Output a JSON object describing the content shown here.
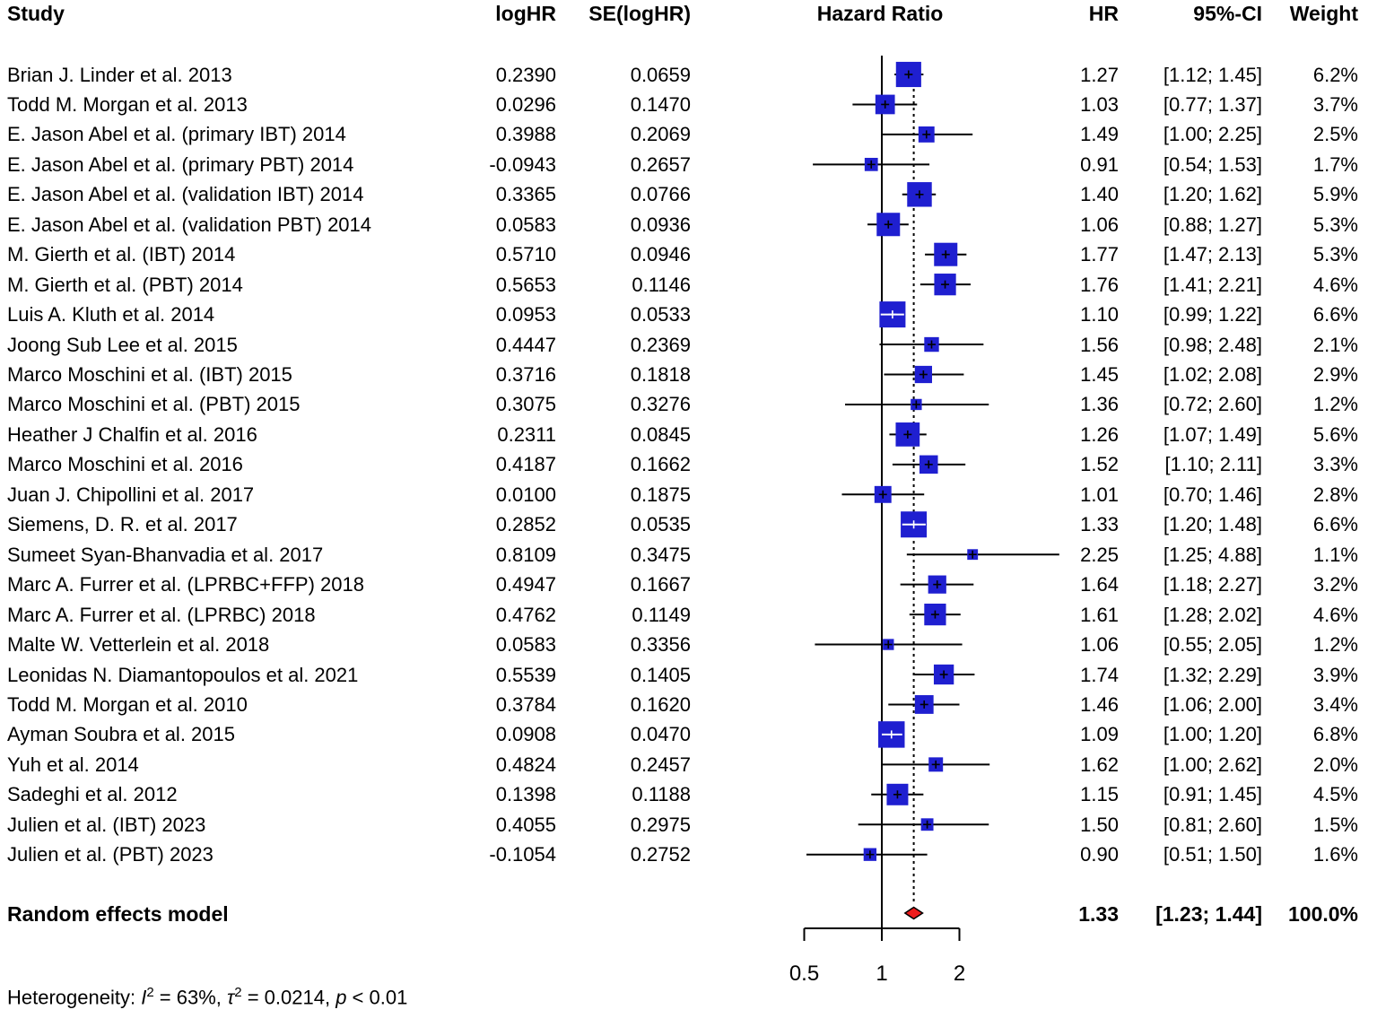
{
  "header": {
    "study": "Study",
    "loghr": "logHR",
    "se": "SE(logHR)",
    "plot": "Hazard Ratio",
    "hr": "HR",
    "ci": "95%-CI",
    "weight": "Weight"
  },
  "chart_data": {
    "type": "forest",
    "scale": "log2",
    "xlabel_ticks": [
      "0.5",
      "1",
      "2"
    ],
    "axis_range": [
      0.5,
      2
    ],
    "ref_line": 1,
    "marker_color": "#1f1fd0",
    "summary_color": "#ee1c1c",
    "studies": [
      {
        "name": "Brian J. Linder et al. 2013",
        "loghr": "0.2390",
        "se": "0.0659",
        "hr": "1.27",
        "hr_value": 1.27,
        "ci": "[1.12; 1.45]",
        "ci_low": 1.12,
        "ci_high": 1.45,
        "weight": "6.2%",
        "weight_value": 6.2
      },
      {
        "name": "Todd M. Morgan et al. 2013",
        "loghr": "0.0296",
        "se": "0.1470",
        "hr": "1.03",
        "hr_value": 1.03,
        "ci": "[0.77; 1.37]",
        "ci_low": 0.77,
        "ci_high": 1.37,
        "weight": "3.7%",
        "weight_value": 3.7
      },
      {
        "name": "E. Jason Abel et al. (primary IBT) 2014",
        "loghr": "0.3988",
        "se": "0.2069",
        "hr": "1.49",
        "hr_value": 1.49,
        "ci": "[1.00; 2.25]",
        "ci_low": 1.0,
        "ci_high": 2.25,
        "weight": "2.5%",
        "weight_value": 2.5
      },
      {
        "name": "E. Jason Abel et al. (primary PBT) 2014",
        "loghr": "-0.0943",
        "se": "0.2657",
        "hr": "0.91",
        "hr_value": 0.91,
        "ci": "[0.54; 1.53]",
        "ci_low": 0.54,
        "ci_high": 1.53,
        "weight": "1.7%",
        "weight_value": 1.7
      },
      {
        "name": "E. Jason Abel et al. (validation IBT) 2014",
        "loghr": "0.3365",
        "se": "0.0766",
        "hr": "1.40",
        "hr_value": 1.4,
        "ci": "[1.20; 1.62]",
        "ci_low": 1.2,
        "ci_high": 1.62,
        "weight": "5.9%",
        "weight_value": 5.9
      },
      {
        "name": "E. Jason Abel et al. (validation PBT) 2014",
        "loghr": "0.0583",
        "se": "0.0936",
        "hr": "1.06",
        "hr_value": 1.06,
        "ci": "[0.88; 1.27]",
        "ci_low": 0.88,
        "ci_high": 1.27,
        "weight": "5.3%",
        "weight_value": 5.3
      },
      {
        "name": "M. Gierth et al. (IBT) 2014",
        "loghr": "0.5710",
        "se": "0.0946",
        "hr": "1.77",
        "hr_value": 1.77,
        "ci": "[1.47; 2.13]",
        "ci_low": 1.47,
        "ci_high": 2.13,
        "weight": "5.3%",
        "weight_value": 5.3
      },
      {
        "name": "M. Gierth et al. (PBT) 2014",
        "loghr": "0.5653",
        "se": "0.1146",
        "hr": "1.76",
        "hr_value": 1.76,
        "ci": "[1.41; 2.21]",
        "ci_low": 1.41,
        "ci_high": 2.21,
        "weight": "4.6%",
        "weight_value": 4.6
      },
      {
        "name": "Luis A. Kluth et al. 2014",
        "loghr": "0.0953",
        "se": "0.0533",
        "hr": "1.10",
        "hr_value": 1.1,
        "ci": "[0.99; 1.22]",
        "ci_low": 0.99,
        "ci_high": 1.22,
        "weight": "6.6%",
        "weight_value": 6.6
      },
      {
        "name": "Joong Sub Lee et al. 2015",
        "loghr": "0.4447",
        "se": "0.2369",
        "hr": "1.56",
        "hr_value": 1.56,
        "ci": "[0.98; 2.48]",
        "ci_low": 0.98,
        "ci_high": 2.48,
        "weight": "2.1%",
        "weight_value": 2.1
      },
      {
        "name": "Marco Moschini et al. (IBT) 2015",
        "loghr": "0.3716",
        "se": "0.1818",
        "hr": "1.45",
        "hr_value": 1.45,
        "ci": "[1.02; 2.08]",
        "ci_low": 1.02,
        "ci_high": 2.08,
        "weight": "2.9%",
        "weight_value": 2.9
      },
      {
        "name": "Marco Moschini et al. (PBT) 2015",
        "loghr": "0.3075",
        "se": "0.3276",
        "hr": "1.36",
        "hr_value": 1.36,
        "ci": "[0.72; 2.60]",
        "ci_low": 0.72,
        "ci_high": 2.6,
        "weight": "1.2%",
        "weight_value": 1.2
      },
      {
        "name": "Heather J Chalfin et al. 2016",
        "loghr": "0.2311",
        "se": "0.0845",
        "hr": "1.26",
        "hr_value": 1.26,
        "ci": "[1.07; 1.49]",
        "ci_low": 1.07,
        "ci_high": 1.49,
        "weight": "5.6%",
        "weight_value": 5.6
      },
      {
        "name": "Marco Moschini et al. 2016",
        "loghr": "0.4187",
        "se": "0.1662",
        "hr": "1.52",
        "hr_value": 1.52,
        "ci": "[1.10; 2.11]",
        "ci_low": 1.1,
        "ci_high": 2.11,
        "weight": "3.3%",
        "weight_value": 3.3
      },
      {
        "name": "Juan J. Chipollini et al. 2017",
        "loghr": "0.0100",
        "se": "0.1875",
        "hr": "1.01",
        "hr_value": 1.01,
        "ci": "[0.70; 1.46]",
        "ci_low": 0.7,
        "ci_high": 1.46,
        "weight": "2.8%",
        "weight_value": 2.8
      },
      {
        "name": "Siemens, D. R. et al. 2017",
        "loghr": "0.2852",
        "se": "0.0535",
        "hr": "1.33",
        "hr_value": 1.33,
        "ci": "[1.20; 1.48]",
        "ci_low": 1.2,
        "ci_high": 1.48,
        "weight": "6.6%",
        "weight_value": 6.6
      },
      {
        "name": "Sumeet Syan-Bhanvadia et al. 2017",
        "loghr": "0.8109",
        "se": "0.3475",
        "hr": "2.25",
        "hr_value": 2.25,
        "ci": "[1.25; 4.88]",
        "ci_low": 1.25,
        "ci_high": 4.88,
        "weight": "1.1%",
        "weight_value": 1.1
      },
      {
        "name": "Marc A. Furrer et al. (LPRBC+FFP) 2018",
        "loghr": "0.4947",
        "se": "0.1667",
        "hr": "1.64",
        "hr_value": 1.64,
        "ci": "[1.18; 2.27]",
        "ci_low": 1.18,
        "ci_high": 2.27,
        "weight": "3.2%",
        "weight_value": 3.2
      },
      {
        "name": "Marc A. Furrer et al. (LPRBC) 2018",
        "loghr": "0.4762",
        "se": "0.1149",
        "hr": "1.61",
        "hr_value": 1.61,
        "ci": "[1.28; 2.02]",
        "ci_low": 1.28,
        "ci_high": 2.02,
        "weight": "4.6%",
        "weight_value": 4.6
      },
      {
        "name": "Malte W. Vetterlein et al. 2018",
        "loghr": "0.0583",
        "se": "0.3356",
        "hr": "1.06",
        "hr_value": 1.06,
        "ci": "[0.55; 2.05]",
        "ci_low": 0.55,
        "ci_high": 2.05,
        "weight": "1.2%",
        "weight_value": 1.2
      },
      {
        "name": "Leonidas N. Diamantopoulos et al. 2021",
        "loghr": "0.5539",
        "se": "0.1405",
        "hr": "1.74",
        "hr_value": 1.74,
        "ci": "[1.32; 2.29]",
        "ci_low": 1.32,
        "ci_high": 2.29,
        "weight": "3.9%",
        "weight_value": 3.9
      },
      {
        "name": "Todd M. Morgan et al. 2010",
        "loghr": "0.3784",
        "se": "0.1620",
        "hr": "1.46",
        "hr_value": 1.46,
        "ci": "[1.06; 2.00]",
        "ci_low": 1.06,
        "ci_high": 2.0,
        "weight": "3.4%",
        "weight_value": 3.4
      },
      {
        "name": "Ayman Soubra et al. 2015",
        "loghr": "0.0908",
        "se": "0.0470",
        "hr": "1.09",
        "hr_value": 1.09,
        "ci": "[1.00; 1.20]",
        "ci_low": 1.0,
        "ci_high": 1.2,
        "weight": "6.8%",
        "weight_value": 6.8
      },
      {
        "name": "Yuh et al. 2014",
        "loghr": "0.4824",
        "se": "0.2457",
        "hr": "1.62",
        "hr_value": 1.62,
        "ci": "[1.00; 2.62]",
        "ci_low": 1.0,
        "ci_high": 2.62,
        "weight": "2.0%",
        "weight_value": 2.0
      },
      {
        "name": "Sadeghi et al. 2012",
        "loghr": "0.1398",
        "se": "0.1188",
        "hr": "1.15",
        "hr_value": 1.15,
        "ci": "[0.91; 1.45]",
        "ci_low": 0.91,
        "ci_high": 1.45,
        "weight": "4.5%",
        "weight_value": 4.5
      },
      {
        "name": "Julien et al. (IBT) 2023",
        "loghr": "0.4055",
        "se": "0.2975",
        "hr": "1.50",
        "hr_value": 1.5,
        "ci": "[0.81; 2.60]",
        "ci_low": 0.81,
        "ci_high": 2.6,
        "weight": "1.5%",
        "weight_value": 1.5
      },
      {
        "name": "Julien et al. (PBT) 2023",
        "loghr": "-0.1054",
        "se": "0.2752",
        "hr": "0.90",
        "hr_value": 0.9,
        "ci": "[0.51; 1.50]",
        "ci_low": 0.51,
        "ci_high": 1.5,
        "weight": "1.6%",
        "weight_value": 1.6
      }
    ],
    "summary": {
      "label": "Random effects model",
      "hr": "1.33",
      "hr_value": 1.33,
      "ci": "[1.23; 1.44]",
      "ci_low": 1.23,
      "ci_high": 1.44,
      "weight": "100.0%"
    }
  },
  "footer": {
    "segments": [
      {
        "text": "Heterogeneity: "
      },
      {
        "text": "I",
        "italic": true
      },
      {
        "text": "2",
        "sup": true
      },
      {
        "text": " = 63%, "
      },
      {
        "text": "τ",
        "italic": true
      },
      {
        "text": "2",
        "sup": true
      },
      {
        "text": " = 0.0214, "
      },
      {
        "text": "p",
        "italic": true
      },
      {
        "text": " < 0.01"
      }
    ]
  }
}
